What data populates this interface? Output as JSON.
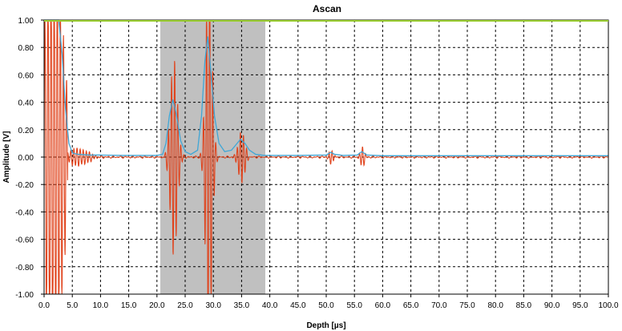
{
  "chart_data": {
    "type": "line",
    "title": "Ascan",
    "xlabel": "Depth [µs]",
    "ylabel": "Amplitude [V]",
    "xlim": [
      0,
      100
    ],
    "ylim": [
      -1,
      1
    ],
    "x_ticks": [
      "0.0",
      "5.0",
      "10.0",
      "15.0",
      "20.0",
      "25.0",
      "30.0",
      "35.0",
      "40.0",
      "45.0",
      "50.0",
      "55.0",
      "60.0",
      "65.0",
      "70.0",
      "75.0",
      "80.0",
      "85.0",
      "90.0",
      "95.0",
      "100.0"
    ],
    "y_ticks": [
      "1.00",
      "0.80",
      "0.60",
      "0.40",
      "0.20",
      "0.00",
      "-0.20",
      "-0.40",
      "-0.60",
      "-0.80",
      "-1.00"
    ],
    "grid": true,
    "gate": {
      "x_start": 20.6,
      "x_end": 39.2
    },
    "colors": {
      "signal": "#e0431c",
      "envelope": "#3fa6d6",
      "gate": "#c0c0c0",
      "top_line": "#9acd32",
      "grid": "#000000"
    },
    "series": [
      {
        "role": "envelope",
        "points": [
          [
            0.0,
            1.0
          ],
          [
            0.6,
            1.0
          ],
          [
            1.2,
            1.0
          ],
          [
            2.0,
            1.0
          ],
          [
            2.6,
            1.0
          ],
          [
            3.2,
            0.75
          ],
          [
            3.8,
            0.35
          ],
          [
            4.4,
            0.1
          ],
          [
            5.0,
            0.03
          ],
          [
            6.0,
            0.02
          ],
          [
            8.0,
            0.015
          ],
          [
            10.0,
            0.015
          ],
          [
            14.0,
            0.012
          ],
          [
            20.0,
            0.012
          ],
          [
            21.0,
            0.02
          ],
          [
            21.6,
            0.1
          ],
          [
            22.2,
            0.3
          ],
          [
            22.8,
            0.42
          ],
          [
            23.4,
            0.32
          ],
          [
            24.2,
            0.12
          ],
          [
            25.0,
            0.04
          ],
          [
            26.0,
            0.02
          ],
          [
            27.2,
            0.05
          ],
          [
            27.9,
            0.3
          ],
          [
            28.5,
            0.7
          ],
          [
            29.0,
            0.88
          ],
          [
            29.5,
            0.65
          ],
          [
            30.2,
            0.3
          ],
          [
            31.0,
            0.1
          ],
          [
            32.0,
            0.04
          ],
          [
            33.2,
            0.05
          ],
          [
            34.0,
            0.09
          ],
          [
            34.8,
            0.13
          ],
          [
            35.6,
            0.1
          ],
          [
            36.4,
            0.05
          ],
          [
            37.5,
            0.02
          ],
          [
            39.0,
            0.012
          ],
          [
            45.0,
            0.012
          ],
          [
            50.0,
            0.015
          ],
          [
            50.8,
            0.035
          ],
          [
            51.5,
            0.02
          ],
          [
            53.0,
            0.012
          ],
          [
            55.5,
            0.015
          ],
          [
            56.3,
            0.04
          ],
          [
            57.2,
            0.015
          ],
          [
            60.0,
            0.01
          ],
          [
            80.0,
            0.01
          ],
          [
            95.0,
            0.01
          ],
          [
            100.0,
            0.01
          ]
        ]
      },
      {
        "role": "signal",
        "osc_period": 0.55,
        "bursts": [
          {
            "t0": 0.0,
            "t1": 4.2,
            "amp": 1.0,
            "sigma": 2.4,
            "center": 1.6
          },
          {
            "t0": 3.5,
            "t1": 12.0,
            "amp": 0.04,
            "sigma": 2.5,
            "center": 6.0
          },
          {
            "t0": 20.8,
            "t1": 26.0,
            "amp": 0.46,
            "sigma": 0.85,
            "center": 23.0
          },
          {
            "t0": 27.0,
            "t1": 33.0,
            "amp": 0.9,
            "sigma": 0.75,
            "center": 29.2
          },
          {
            "t0": 33.0,
            "t1": 37.5,
            "amp": 0.12,
            "sigma": 0.8,
            "center": 35.0
          },
          {
            "t0": 49.8,
            "t1": 52.0,
            "amp": 0.035,
            "sigma": 0.5,
            "center": 50.9
          },
          {
            "t0": 55.2,
            "t1": 57.8,
            "amp": 0.05,
            "sigma": 0.5,
            "center": 56.4
          }
        ],
        "noise_amp": 0.008
      }
    ]
  }
}
